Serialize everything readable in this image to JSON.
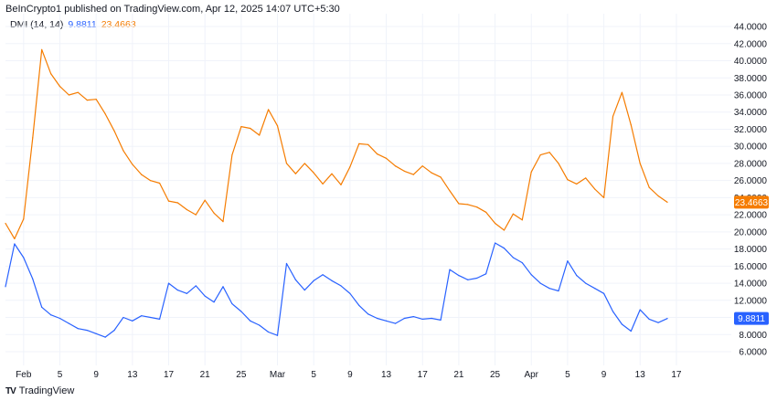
{
  "header": {
    "text": "BeInCrypto1 published on TradingView.com, Apr 12, 2025 14:07 UTC+5:30"
  },
  "legend": {
    "name": "DMI (14, 14)",
    "plus_value": "9.8811",
    "minus_value": "23.4663"
  },
  "footer": {
    "logo": "TV",
    "brand": "TradingView"
  },
  "colors": {
    "plus": "#2962ff",
    "minus": "#f57c00",
    "grid": "#f0f3fa"
  },
  "chart_data": {
    "type": "line",
    "y_ticks": [
      "44.0000",
      "42.0000",
      "40.0000",
      "38.0000",
      "36.0000",
      "34.0000",
      "32.0000",
      "30.0000",
      "28.0000",
      "26.0000",
      "24.0000",
      "22.0000",
      "20.0000",
      "18.0000",
      "16.0000",
      "14.0000",
      "12.0000",
      "10.0000",
      "8.0000",
      "6.0000"
    ],
    "x_ticks": [
      "Feb",
      "5",
      "9",
      "13",
      "17",
      "21",
      "25",
      "Mar",
      "5",
      "9",
      "13",
      "17",
      "21",
      "25",
      "Apr",
      "5",
      "9",
      "13",
      "17"
    ],
    "ylim": [
      4.4,
      45.5
    ],
    "grid": true,
    "series": [
      {
        "name": "DMI-",
        "last_label": "23.4663",
        "color": "#f57c00",
        "values": [
          21.0,
          19.2,
          21.5,
          31.0,
          41.3,
          38.5,
          37.0,
          36.0,
          36.3,
          35.4,
          35.5,
          33.8,
          31.8,
          29.5,
          27.9,
          26.7,
          26.0,
          25.7,
          23.6,
          23.4,
          22.6,
          22.0,
          23.7,
          22.2,
          21.2,
          29.0,
          32.3,
          32.1,
          31.3,
          34.3,
          32.4,
          28.0,
          26.8,
          28.0,
          26.9,
          25.6,
          26.8,
          25.5,
          27.6,
          30.3,
          30.2,
          29.1,
          28.6,
          27.7,
          27.1,
          26.7,
          27.7,
          26.9,
          26.4,
          24.8,
          23.3,
          23.2,
          22.9,
          22.3,
          21.0,
          20.2,
          22.1,
          21.4,
          27.0,
          29.0,
          29.3,
          28.0,
          26.1,
          25.6,
          26.3,
          25.0,
          24.0,
          33.5,
          36.3,
          32.5,
          28.0,
          25.2,
          24.2,
          23.4663
        ]
      },
      {
        "name": "DMI+",
        "last_label": "9.8811",
        "color": "#2962ff",
        "values": [
          13.6,
          18.6,
          17.0,
          14.5,
          11.2,
          10.3,
          9.9,
          9.3,
          8.7,
          8.5,
          8.1,
          7.7,
          8.5,
          10.0,
          9.6,
          10.2,
          10.0,
          9.8,
          14.0,
          13.2,
          12.8,
          13.7,
          12.5,
          11.8,
          13.6,
          11.6,
          10.7,
          9.6,
          9.1,
          8.3,
          7.9,
          16.3,
          14.4,
          13.2,
          14.3,
          15.0,
          14.3,
          13.7,
          12.8,
          11.4,
          10.4,
          9.9,
          9.6,
          9.3,
          9.9,
          10.1,
          9.8,
          9.9,
          9.7,
          15.6,
          14.9,
          14.4,
          14.6,
          15.1,
          18.7,
          18.1,
          17.0,
          16.4,
          15.0,
          14.0,
          13.4,
          13.1,
          16.6,
          14.9,
          14.0,
          13.4,
          12.8,
          10.7,
          9.2,
          8.4,
          10.9,
          9.8,
          9.4,
          9.8811
        ]
      }
    ]
  }
}
